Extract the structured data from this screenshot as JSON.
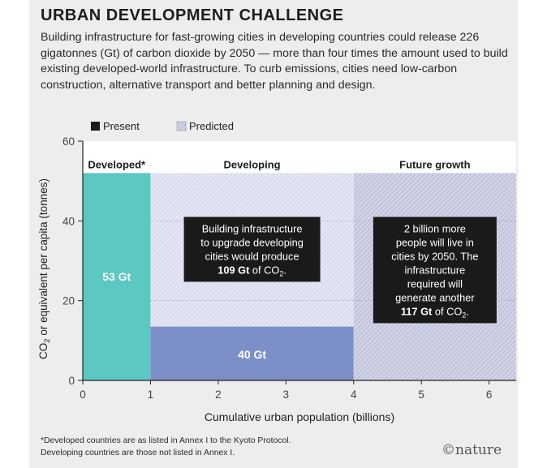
{
  "title": "URBAN DEVELOPMENT CHALLENGE",
  "subtitle": "Building infrastructure for fast-growing cities in developing countries could release 226 gigatonnes (Gt) of carbon dioxide by 2050 — more than four times the amount used to build existing developed-world infrastructure. To curb emissions, cities need low-carbon construction, alternative transport and better planning and design.",
  "footnote_line1": "*Developed countries are as listed in Annex I to the Kyoto Protocol.",
  "footnote_line2": "Developing countries are those not listed in Annex I.",
  "logo_text": "©nature",
  "colors": {
    "developed": "#5cc8c1",
    "developing_present": "#7d8fc9",
    "developing_predicted": "#dcdff2",
    "future_predicted": "#c9cbe0",
    "annotation_box": "#1a1a1a"
  },
  "chart_data": {
    "type": "area",
    "xlabel": "Cumulative urban population (billions)",
    "ylabel": "CO2 or equivalent per capita (tonnes)",
    "xlim": [
      0,
      6.4
    ],
    "ylim": [
      0,
      60
    ],
    "xticks": [
      "0",
      "1",
      "2",
      "3",
      "4",
      "5",
      "6"
    ],
    "yticks": [
      "0",
      "20",
      "40",
      "60"
    ],
    "grid": "dashed horizontal at 20 and 40",
    "legend": {
      "position": "top-left",
      "items": [
        {
          "label": "Present",
          "pattern": "solid"
        },
        {
          "label": "Predicted",
          "pattern": "hatched"
        }
      ]
    },
    "regions": [
      {
        "label": "Developed*",
        "x0": 0,
        "x1": 1,
        "y": 52,
        "status": "Present",
        "value_label": "53 Gt"
      },
      {
        "label": "Developing",
        "x0": 1,
        "x1": 4,
        "y": 52,
        "status": "Predicted",
        "present_y": 13.5,
        "value_label": "40 Gt"
      },
      {
        "label": "Future growth",
        "x0": 4,
        "x1": 6.4,
        "y": 52,
        "status": "Predicted"
      }
    ],
    "annotations": [
      {
        "lines": [
          "Building infrastructure",
          "to upgrade developing",
          "cities would produce"
        ],
        "value": "109 Gt",
        "unit": "of CO",
        "sub": "2",
        "suffix": "."
      },
      {
        "lines": [
          "2 billion more",
          "people will live in",
          "cities by 2050. The",
          "infrastructure",
          "required will",
          "generate another"
        ],
        "value": "117 Gt",
        "unit": "of CO",
        "sub": "2",
        "suffix": "."
      }
    ]
  }
}
